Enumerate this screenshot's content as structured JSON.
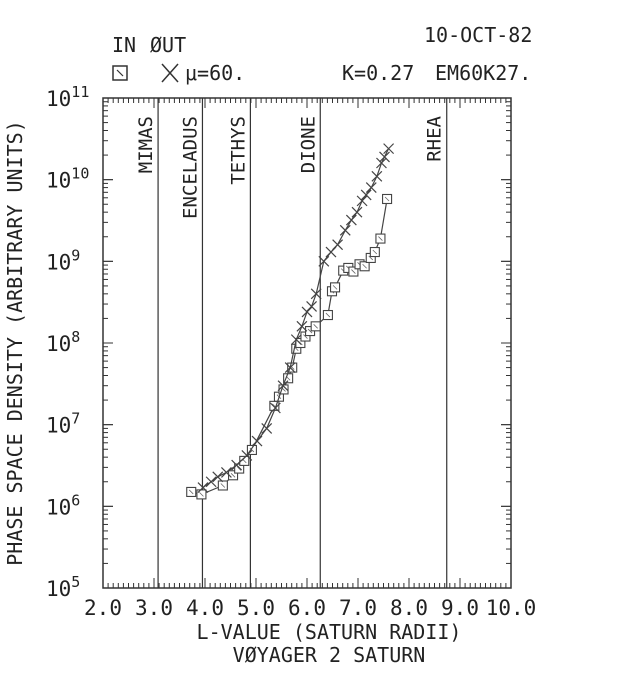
{
  "header": {
    "date": "10-OCT-82",
    "legend_in_label": "IN",
    "legend_out_label": "ØUT",
    "mu_label": "μ=60.",
    "k_label": "K=0.27",
    "run_label": "EM60K27."
  },
  "chart_data": {
    "type": "line",
    "title": "",
    "xlabel": "L-VALUE (SATURN RADII)",
    "xlabel2": "VØYAGER 2 SATURN",
    "ylabel": "PHASE SPACE DENSITY (ARBITRARY UNITS)",
    "xlim": [
      2.0,
      10.0
    ],
    "ylim": [
      100000,
      100000000000
    ],
    "yscale": "log",
    "grid": false,
    "legend": "top-left",
    "x_tick_labels": [
      "2.0",
      "3.0",
      "4.0",
      "5.0",
      "6.0",
      "7.0",
      "8.0",
      "9.0",
      "10.0"
    ],
    "y_tick_labels": [
      {
        "base": "10",
        "exp": "5"
      },
      {
        "base": "10",
        "exp": "6"
      },
      {
        "base": "10",
        "exp": "7"
      },
      {
        "base": "10",
        "exp": "8"
      },
      {
        "base": "10",
        "exp": "9"
      },
      {
        "base": "10",
        "exp": "10"
      },
      {
        "base": "10",
        "exp": "11"
      }
    ],
    "moons": [
      {
        "name": "MIMAS",
        "L": 3.08
      },
      {
        "name": "ENCELADUS",
        "L": 3.95
      },
      {
        "name": "TETHYS",
        "L": 4.89
      },
      {
        "name": "DIONE",
        "L": 6.26
      },
      {
        "name": "RHEA",
        "L": 8.74
      }
    ],
    "series": [
      {
        "label": "IN",
        "marker": "square",
        "x": [
          3.73,
          3.93,
          4.35,
          4.55,
          4.67,
          4.77,
          4.92,
          5.36,
          5.45,
          5.54,
          5.63,
          5.71,
          5.79,
          5.87,
          5.97,
          6.06,
          6.17,
          6.41,
          6.49,
          6.55,
          6.71,
          6.81,
          6.91,
          7.03,
          7.13,
          7.25,
          7.33,
          7.44,
          7.57
        ],
        "y": [
          1500000,
          1400000,
          1800000,
          2400000,
          2900000,
          3600000,
          4900000,
          17000000,
          22000000,
          27000000,
          37000000,
          50000000,
          85000000,
          100000000,
          120000000,
          140000000,
          160000000,
          220000000,
          430000000,
          480000000,
          770000000,
          830000000,
          750000000,
          920000000,
          870000000,
          1100000000,
          1300000000,
          1900000000,
          5800000000
        ]
      },
      {
        "label": "OUT",
        "marker": "x",
        "x": [
          3.96,
          4.12,
          4.25,
          4.42,
          4.62,
          4.82,
          5.02,
          5.21,
          5.38,
          5.53,
          5.67,
          5.79,
          5.9,
          6.0,
          6.09,
          6.18,
          6.33,
          6.47,
          6.6,
          6.75,
          6.87,
          6.98,
          7.08,
          7.16,
          7.26,
          7.37,
          7.46,
          7.52,
          7.6
        ],
        "y": [
          1700000,
          2000000,
          2300000,
          2600000,
          3200000,
          4200000,
          6300000,
          9000000,
          16000000,
          30000000,
          50000000,
          110000000,
          160000000,
          240000000,
          280000000,
          400000000,
          1000000000,
          1300000000,
          1600000000,
          2400000000,
          3200000000,
          4000000000,
          5500000000,
          6500000000,
          8000000000,
          11000000000,
          16000000000,
          19000000000,
          24000000000
        ]
      }
    ]
  }
}
